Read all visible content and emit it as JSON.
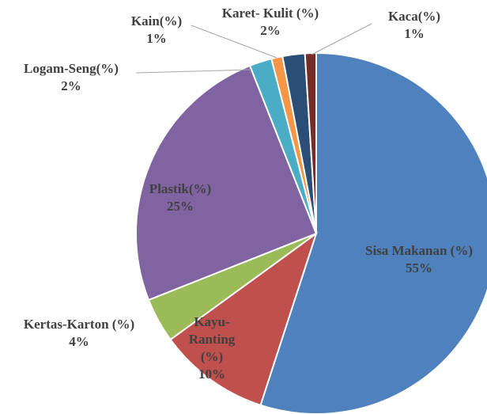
{
  "chart_data": {
    "type": "pie",
    "categories": [
      "Sisa Makanan (%)",
      "Kayu-Ranting (%)",
      "Kertas-Karton (%)",
      "Plastik(%)",
      "Logam-Seng(%)",
      "Kain(%)",
      "Karet- Kulit (%)",
      "Kaca(%)"
    ],
    "values": [
      55,
      10,
      4,
      25,
      2,
      1,
      2,
      1
    ],
    "value_labels": [
      "55%",
      "10%",
      "4%",
      "25%",
      "2%",
      "1%",
      "2%",
      "1%"
    ],
    "colors": [
      "#4f81bd",
      "#c0504d",
      "#9bbb59",
      "#8064a2",
      "#4bacc6",
      "#f79646",
      "#2c4d75",
      "#772c2a"
    ]
  }
}
